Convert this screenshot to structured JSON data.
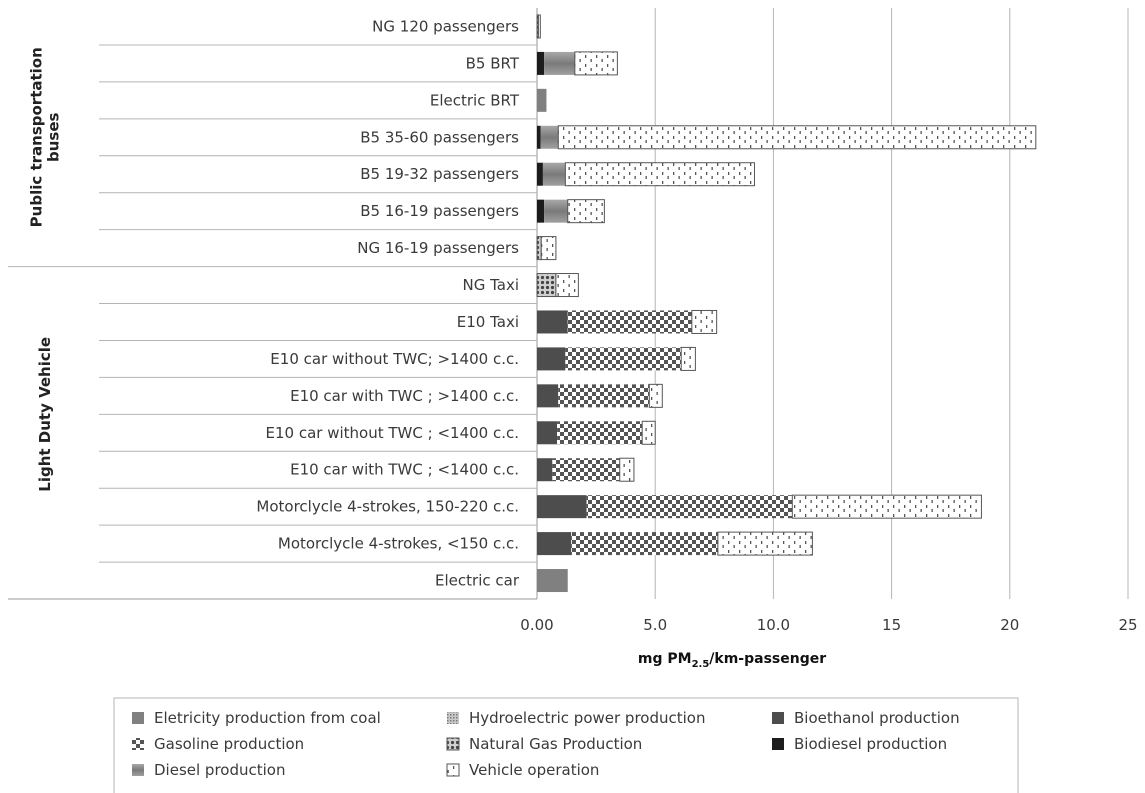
{
  "chart_data": {
    "type": "bar",
    "orientation": "horizontal",
    "stacked": true,
    "xlabel": "mg PM2.5/km-passenger",
    "xlabel_parts": {
      "prefix": "mg PM",
      "subscript": "2.5",
      "suffix": "/km-passenger"
    },
    "xlim": [
      0,
      25
    ],
    "x_ticks": [
      "0.00",
      "5.0",
      "10.0",
      "15",
      "20",
      "25"
    ],
    "grid": "vertical",
    "legend_position": "bottom",
    "groups": [
      {
        "label": "Public transportation buses",
        "label_lines": [
          "Public transportation",
          "buses"
        ],
        "first": 0,
        "last": 6
      },
      {
        "label": "Light Duty Vehicle",
        "label_lines": [
          "Light Duty Vehicle"
        ],
        "first": 7,
        "last": 14
      }
    ],
    "categories": [
      "NG 120 passengers",
      "B5 BRT",
      "Electric BRT",
      "B5 35-60 passengers",
      "B5 19-32 passengers",
      "B5 16-19 passengers",
      "NG 16-19 passengers",
      "NG Taxi",
      "E10 Taxi",
      "E10 car without TWC; >1400 c.c.",
      "E10 car with TWC ; >1400 c.c.",
      "E10 car without TWC ; <1400 c.c.",
      "E10 car with TWC ; <1400 c.c.",
      "Motorclycle 4-strokes, 150-220 c.c.",
      "Motorclycle 4-strokes, <150 c.c.",
      "Electric car"
    ],
    "series": [
      {
        "name": "Eletricity production from coal",
        "color": "#808080",
        "pattern": "solid",
        "values": [
          0,
          0,
          0.4,
          0,
          0,
          0,
          0,
          0,
          0,
          0,
          0,
          0,
          0,
          0,
          0,
          1.3
        ]
      },
      {
        "name": "Hydroelectric power production",
        "color": "#9a9a9a",
        "pattern": "fine",
        "values": [
          0,
          0,
          0,
          0,
          0,
          0,
          0,
          0,
          0,
          0,
          0,
          0,
          0,
          0,
          0,
          0
        ]
      },
      {
        "name": "Bioethanol production",
        "color": "#4d4d4d",
        "pattern": "solid",
        "values": [
          0,
          0,
          0,
          0,
          0,
          0,
          0,
          0,
          1.3,
          1.2,
          0.9,
          0.85,
          0.65,
          2.1,
          1.45,
          0
        ]
      },
      {
        "name": "Gasoline production",
        "color": "#555555",
        "pattern": "check",
        "values": [
          0,
          0,
          0,
          0,
          0,
          0,
          0,
          0,
          5.25,
          4.9,
          3.85,
          3.6,
          2.85,
          8.7,
          6.2,
          0
        ]
      },
      {
        "name": "Natural Gas Production",
        "color": "#666666",
        "pattern": "dots",
        "values": [
          0.06,
          0,
          0,
          0,
          0,
          0,
          0.18,
          0.8,
          0,
          0,
          0,
          0,
          0,
          0,
          0,
          0
        ]
      },
      {
        "name": "Biodiesel production",
        "color": "#1c1c1c",
        "pattern": "solid",
        "values": [
          0,
          0.3,
          0,
          0.15,
          0.25,
          0.3,
          0,
          0,
          0,
          0,
          0,
          0,
          0,
          0,
          0,
          0
        ]
      },
      {
        "name": "Diesel production",
        "color": "#8c8c8c",
        "pattern": "gradient",
        "values": [
          0,
          1.3,
          0,
          0.75,
          0.95,
          1.0,
          0,
          0,
          0,
          0,
          0,
          0,
          0,
          0,
          0,
          0
        ]
      },
      {
        "name": "Vehicle operation",
        "color": "#5a5a5a",
        "pattern": "dashes",
        "values": [
          0.08,
          1.8,
          0,
          20.2,
          8.0,
          1.55,
          0.62,
          0.95,
          1.05,
          0.6,
          0.55,
          0.55,
          0.6,
          8.0,
          4.0,
          0
        ]
      }
    ],
    "legend_order": [
      "Eletricity production from coal",
      "Hydroelectric power production",
      "Bioethanol production",
      "Gasoline production",
      "Natural Gas Production",
      "Biodiesel production",
      "Diesel production",
      "Vehicle operation"
    ]
  }
}
